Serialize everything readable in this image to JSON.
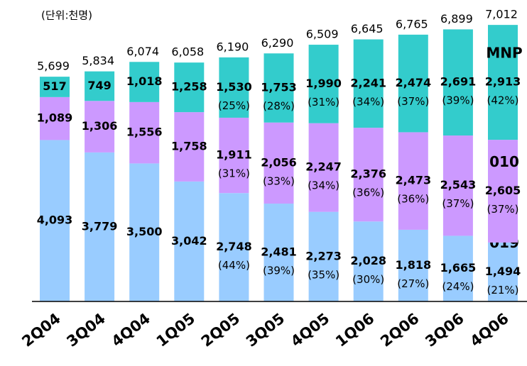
{
  "chart_data": {
    "type": "stacked_bar",
    "unit_label": "(단위:천명)",
    "categories": [
      "2Q04",
      "3Q04",
      "4Q04",
      "1Q05",
      "2Q05",
      "3Q05",
      "4Q05",
      "1Q06",
      "2Q06",
      "3Q06",
      "4Q06"
    ],
    "ylim": [
      0,
      7500
    ],
    "totals": [
      5699,
      5834,
      6074,
      6058,
      6190,
      6290,
      6509,
      6645,
      6765,
      6899,
      7012
    ],
    "total_labels": [
      "5,699",
      "5,834",
      "6,074",
      "6,058",
      "6,190",
      "6,290",
      "6,509",
      "6,645",
      "6,765",
      "6,899",
      "7,012"
    ],
    "series": [
      {
        "name": "019",
        "color": "#99ccff",
        "values": [
          4093,
          3779,
          3500,
          3042,
          2748,
          2481,
          2273,
          2028,
          1818,
          1665,
          1494
        ],
        "value_labels": [
          "4,093",
          "3,779",
          "3,500",
          "3,042",
          "2,748",
          "2,481",
          "2,273",
          "2,028",
          "1,818",
          "1,665",
          "1,494"
        ],
        "shares": [
          null,
          null,
          null,
          null,
          44,
          39,
          35,
          30,
          27,
          24,
          21
        ],
        "share_labels": [
          null,
          null,
          null,
          null,
          "(44%)",
          "(39%)",
          "(35%)",
          "(30%)",
          "(27%)",
          "(24%)",
          "(21%)"
        ]
      },
      {
        "name": "010",
        "color": "#cc99ff",
        "values": [
          1089,
          1306,
          1556,
          1758,
          1911,
          2056,
          2247,
          2376,
          2473,
          2543,
          2605
        ],
        "value_labels": [
          "1,089",
          "1,306",
          "1,556",
          "1,758",
          "1,911",
          "2,056",
          "2,247",
          "2,376",
          "2,473",
          "2,543",
          "2,605"
        ],
        "shares": [
          null,
          null,
          null,
          null,
          31,
          33,
          34,
          36,
          36,
          37,
          37
        ],
        "share_labels": [
          null,
          null,
          null,
          null,
          "(31%)",
          "(33%)",
          "(34%)",
          "(36%)",
          "(36%)",
          "(37%)",
          "(37%)"
        ]
      },
      {
        "name": "MNP",
        "color": "#33cccc",
        "values": [
          517,
          749,
          1018,
          1258,
          1530,
          1753,
          1990,
          2241,
          2474,
          2691,
          2913
        ],
        "value_labels": [
          "517",
          "749",
          "1,018",
          "1,258",
          "1,530",
          "1,753",
          "1,990",
          "2,241",
          "2,474",
          "2,691",
          "2,913"
        ],
        "shares": [
          null,
          null,
          null,
          null,
          25,
          28,
          31,
          34,
          37,
          39,
          42
        ],
        "share_labels": [
          null,
          null,
          null,
          null,
          "(25%)",
          "(28%)",
          "(31%)",
          "(34%)",
          "(37%)",
          "(39%)",
          "(42%)"
        ]
      }
    ]
  }
}
